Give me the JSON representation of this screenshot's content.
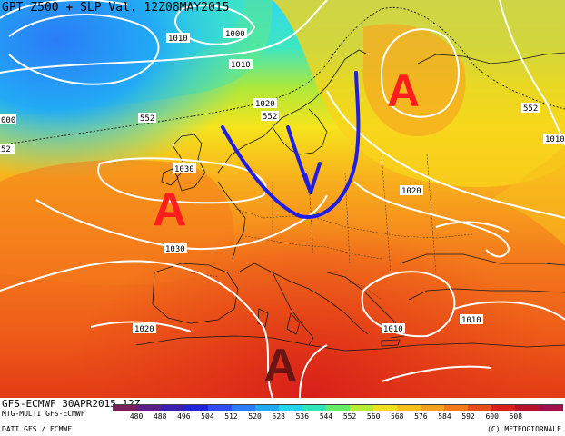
{
  "title": "GPT Z500 + SLP Val. 12Z08MAY2015",
  "footer": {
    "model_run": "GFS-ECMWF 30APR2015 12Z",
    "multi": "MTG-MULTI GFS-ECMWF",
    "source": "DATI GFS / ECMWF",
    "copyright": "(C) METEOGIORNALE"
  },
  "colorbar": {
    "ticks": [
      "480",
      "488",
      "496",
      "504",
      "512",
      "520",
      "528",
      "536",
      "544",
      "552",
      "560",
      "568",
      "576",
      "584",
      "592",
      "600",
      "608"
    ],
    "colors": [
      "#7a1e5a",
      "#5b1f8a",
      "#3a1fb0",
      "#2222d8",
      "#2e4cf0",
      "#2a7cf7",
      "#22aaf5",
      "#22d4ee",
      "#2fe6b8",
      "#66ee66",
      "#b6ee33",
      "#f0e020",
      "#f8c018",
      "#f6a020",
      "#f27a1c",
      "#e94c18",
      "#d81f1a",
      "#b8132c",
      "#a0104a"
    ]
  },
  "pressure_labels": [
    "1010",
    "1000",
    "1010",
    "1020",
    "1030",
    "1030",
    "1020",
    "1020",
    "1010",
    "1010",
    "1010"
  ],
  "height_labels": [
    "552",
    "552",
    "552",
    "552"
  ],
  "edge_labels": [
    "000",
    "52"
  ],
  "annotations": {
    "high_north": "A",
    "high_west": "A",
    "high_south": "A",
    "arrow_color": "#1e1ee6"
  },
  "colors": {
    "high_red": "#ff1e1e",
    "high_dark": "#6a1414"
  }
}
